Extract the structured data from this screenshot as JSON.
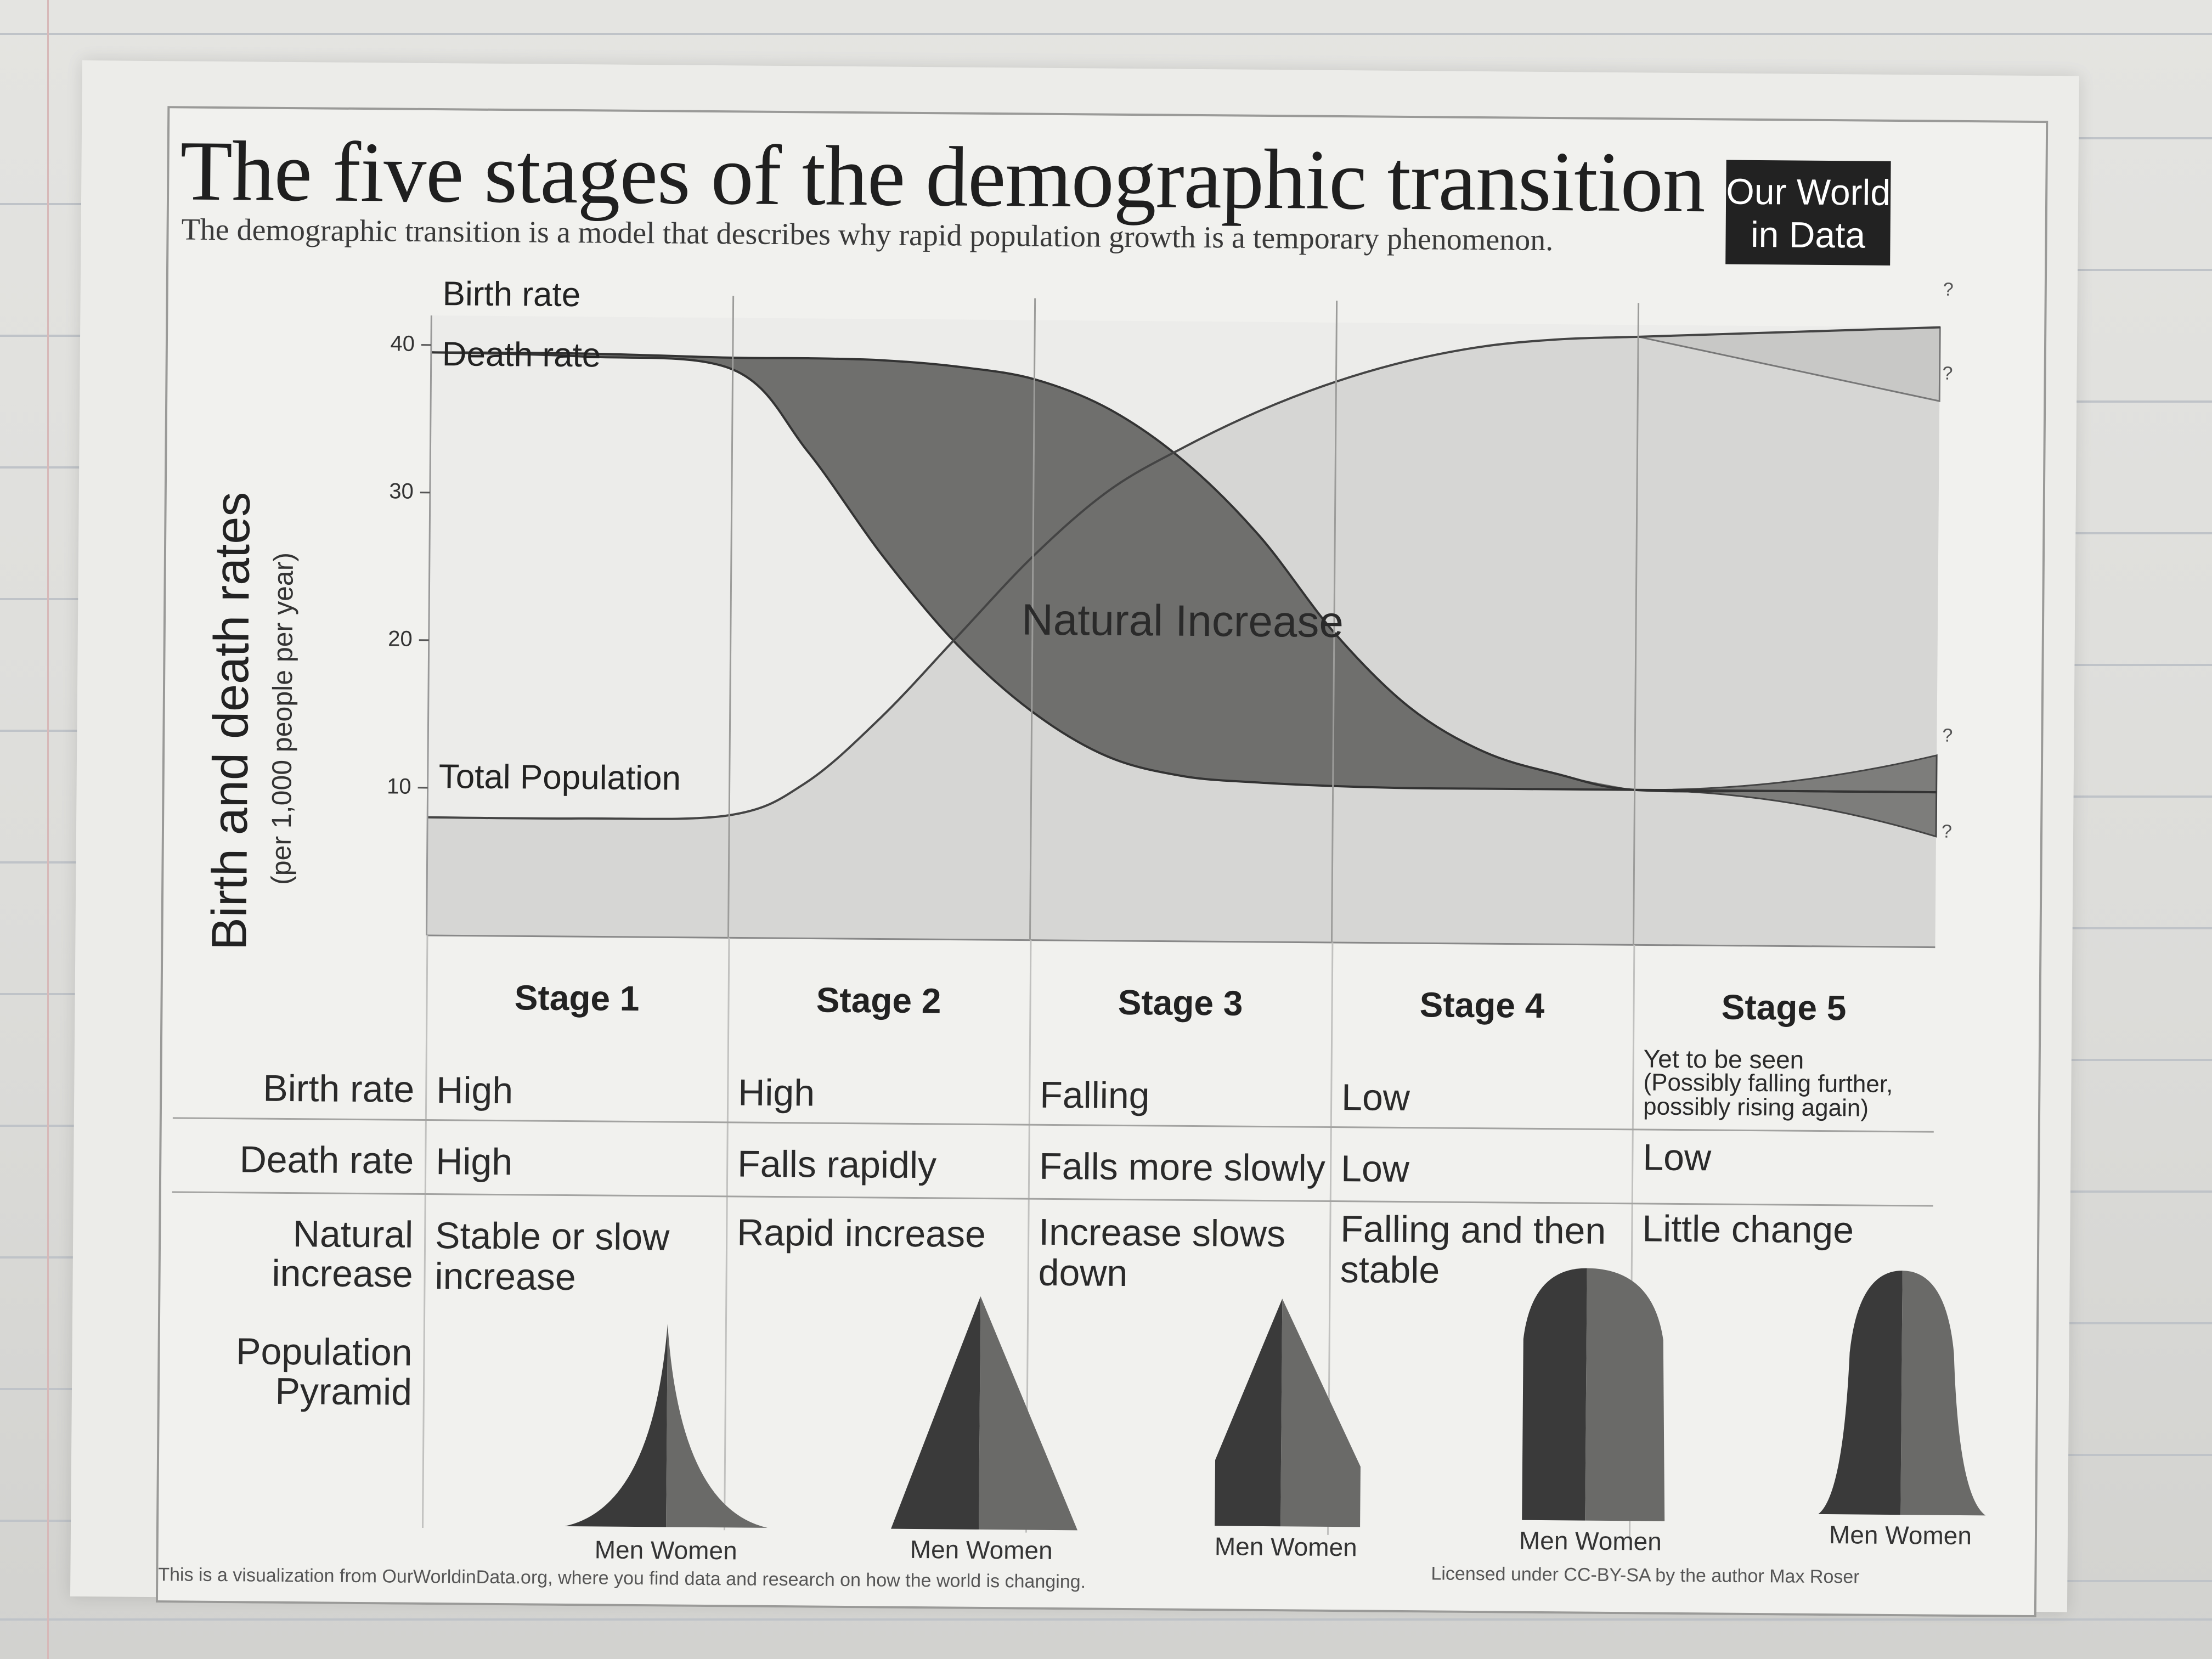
{
  "title": "The five stages of the demographic transition",
  "subtitle": "The demographic transition is a model that describes why rapid population growth is a temporary phenomenon.",
  "logo": {
    "line1": "Our World",
    "line2": "in Data"
  },
  "chart": {
    "ylabel": "Birth and death rates",
    "yunit": "(per 1,000 people per year)",
    "yticks": [
      "10",
      "20",
      "30",
      "40"
    ],
    "ylim": [
      0,
      42
    ],
    "labels": {
      "birth_rate": "Birth rate",
      "death_rate": "Death rate",
      "total_population": "Total Population",
      "natural_increase": "Natural Increase",
      "question": "?"
    }
  },
  "chart_data": {
    "type": "line",
    "x": [
      0,
      0.5,
      1,
      1.25,
      1.5,
      1.75,
      2,
      2.25,
      2.5,
      2.75,
      3,
      3.25,
      3.5,
      3.75,
      4,
      4.5,
      5
    ],
    "ylim": [
      0,
      42
    ],
    "series": [
      {
        "name": "Birth rate",
        "values": [
          39.5,
          39.5,
          39.3,
          39.3,
          39.2,
          38.8,
          38,
          36,
          32.5,
          27.5,
          21,
          16,
          13,
          11.5,
          10.5,
          10.5,
          10.5
        ]
      },
      {
        "name": "Death rate",
        "values": [
          39.5,
          39.3,
          38.5,
          33,
          26,
          20,
          15.5,
          12.5,
          11.2,
          10.8,
          10.6,
          10.5,
          10.5,
          10.5,
          10.5,
          10.5,
          10.5
        ]
      },
      {
        "name": "Total Population",
        "values": [
          8,
          8,
          8.3,
          10.5,
          15,
          20.5,
          26,
          30.5,
          33.5,
          36,
          38,
          39.5,
          40.5,
          41,
          41.2,
          41.6,
          42
        ]
      }
    ],
    "stage5_projections": {
      "birth_rate_high": 13,
      "birth_rate_low": 7.5,
      "population_high": 42,
      "population_low": 37
    }
  },
  "table": {
    "stages": [
      "Stage 1",
      "Stage 2",
      "Stage 3",
      "Stage 4",
      "Stage 5"
    ],
    "rows": {
      "birth_rate": {
        "label": "Birth rate",
        "values": [
          "High",
          "High",
          "Falling",
          "Low"
        ],
        "stage5_main": "Yet to be seen",
        "stage5_note": "(Possibly falling further, possibly rising again)"
      },
      "death_rate": {
        "label": "Death rate",
        "values": [
          "High",
          "Falls rapidly",
          "Falls more slowly",
          "Low",
          "Low"
        ]
      },
      "natural_increase": {
        "label_line1": "Natural",
        "label_line2": "increase",
        "values": [
          [
            "Stable or slow",
            "increase"
          ],
          [
            "Rapid increase",
            ""
          ],
          [
            "Increase slows",
            "down"
          ],
          [
            "Falling and then",
            "stable"
          ],
          [
            "Little change",
            ""
          ]
        ]
      },
      "pyramid": {
        "label_line1": "Population",
        "label_line2": "Pyramid",
        "caption": "Men  Women"
      }
    }
  },
  "footer": {
    "left": "This is a visualization from OurWorldinData.org, where you find data and research on how the world is changing.",
    "right": "Licensed under CC-BY-SA by the author Max Roser"
  },
  "colors": {
    "dark_area": "#6f6f6d",
    "light_area": "#d2d2d0",
    "line": "#333333",
    "pyramid_men": "#3a3a3a",
    "pyramid_women": "#6a6a68"
  }
}
